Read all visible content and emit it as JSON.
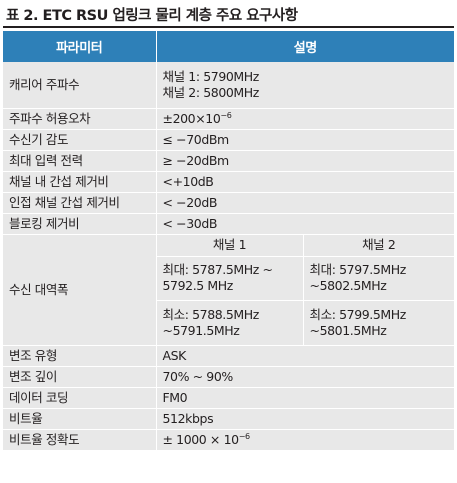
{
  "caption": "표 2. ETC RSU 업링크 물리 계층 주요 요구사항",
  "table": {
    "headers": {
      "parameter": "파라미터",
      "description": "설명"
    },
    "carrier": {
      "label": "캐리어 주파수",
      "line1": "채널 1: 5790MHz",
      "line2": "채널 2: 5800MHz"
    },
    "tolerance": {
      "label": "주파수 허용오차",
      "base": "±200×10",
      "exp": "−6"
    },
    "sensitivity": {
      "label": "수신기 감도",
      "value": "≤ −70dBm"
    },
    "max_input": {
      "label": "최대 입력 전력",
      "value": "≥ −20dBm"
    },
    "co_channel": {
      "label": "채널 내 간섭 제거비",
      "value": "<+10dB"
    },
    "adjacent": {
      "label": "인접 채널 간섭 제거비",
      "value": "< −20dB"
    },
    "blocking": {
      "label": "블로킹 제거비",
      "value": "< −30dB"
    },
    "bandwidth": {
      "label": "수신 대역폭",
      "ch1": "채널 1",
      "ch2": "채널 2",
      "ch1_max_1": "최대: 5787.5MHz ~",
      "ch1_max_2": "5792.5 MHz",
      "ch2_max_1": "최대: 5797.5MHz",
      "ch2_max_2": "~5802.5MHz",
      "ch1_min_1": "최소: 5788.5MHz",
      "ch1_min_2": "~5791.5MHz",
      "ch2_min_1": "최소: 5799.5MHz",
      "ch2_min_2": "~5801.5MHz"
    },
    "modulation": {
      "label": "변조 유형",
      "value": "ASK"
    },
    "depth": {
      "label": "변조 깊이",
      "value": "70% ~ 90%"
    },
    "coding": {
      "label": "데이터 코딩",
      "value": "FM0"
    },
    "bitrate": {
      "label": "비트율",
      "value": "512kbps"
    },
    "bitrate_accuracy": {
      "label": "비트율 정확도",
      "base": "± 1000 × 10",
      "exp": "−6"
    }
  }
}
